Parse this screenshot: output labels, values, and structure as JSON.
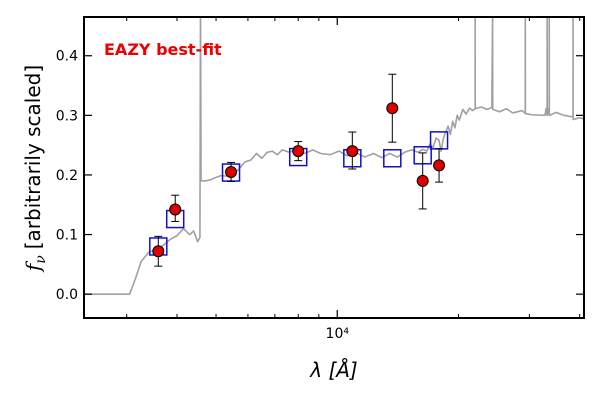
{
  "chart_data": {
    "type": "scatter",
    "annotation": "EAZY best-fit",
    "xlabel": "λ [Å]",
    "ylabel_symbol": "f",
    "ylabel_subscript": "ν",
    "ylabel_text": "[arbitrarily scaled]",
    "x_scale": "log",
    "xlim": [
      2350,
      41000
    ],
    "ylim": [
      -0.04,
      0.465
    ],
    "x_major_ticks": [
      {
        "value": 10000,
        "label": "10⁴"
      }
    ],
    "x_minor_ticks": [
      3000,
      4000,
      5000,
      6000,
      7000,
      8000,
      9000,
      20000,
      30000,
      40000
    ],
    "y_ticks": [
      {
        "value": 0.0,
        "label": "0.0"
      },
      {
        "value": 0.1,
        "label": "0.1"
      },
      {
        "value": 0.2,
        "label": "0.2"
      },
      {
        "value": 0.3,
        "label": "0.3"
      },
      {
        "value": 0.4,
        "label": "0.4"
      }
    ],
    "colors": {
      "model": "#a0a0a0",
      "observed_fill": "#dd0000",
      "synthetic_edge": "#1010cc",
      "annotation": "#ee0000",
      "axes": "#000000"
    },
    "series": [
      {
        "name": "observed photometry",
        "marker": "circle",
        "points": [
          {
            "x": 3594,
            "y": 0.072,
            "err_lo": 0.025,
            "err_hi": 0.025
          },
          {
            "x": 3959,
            "y": 0.142,
            "err_lo": 0.02,
            "err_hi": 0.024
          },
          {
            "x": 5448,
            "y": 0.205,
            "err_lo": 0.016,
            "err_hi": 0.016
          },
          {
            "x": 8000,
            "y": 0.24,
            "err_lo": 0.016,
            "err_hi": 0.016
          },
          {
            "x": 10900,
            "y": 0.24,
            "err_lo": 0.03,
            "err_hi": 0.032
          },
          {
            "x": 13700,
            "y": 0.312,
            "err_lo": 0.057,
            "err_hi": 0.057
          },
          {
            "x": 16300,
            "y": 0.19,
            "err_lo": 0.047,
            "err_hi": 0.047
          },
          {
            "x": 17900,
            "y": 0.216,
            "err_lo": 0.028,
            "err_hi": 0.028
          }
        ]
      },
      {
        "name": "model synthetic photometry",
        "marker": "square",
        "points": [
          {
            "x": 3594,
            "y": 0.08
          },
          {
            "x": 3959,
            "y": 0.126
          },
          {
            "x": 5448,
            "y": 0.204
          },
          {
            "x": 8000,
            "y": 0.23
          },
          {
            "x": 10900,
            "y": 0.228
          },
          {
            "x": 13700,
            "y": 0.228
          },
          {
            "x": 16300,
            "y": 0.233
          },
          {
            "x": 17900,
            "y": 0.258
          }
        ]
      },
      {
        "name": "best-fit template spectrum",
        "marker": "line",
        "points": [
          [
            2350,
            0.0
          ],
          [
            3050,
            0.0
          ],
          [
            3150,
            0.025
          ],
          [
            3260,
            0.055
          ],
          [
            3400,
            0.07
          ],
          [
            3550,
            0.075
          ],
          [
            3700,
            0.082
          ],
          [
            3850,
            0.092
          ],
          [
            4000,
            0.098
          ],
          [
            4150,
            0.11
          ],
          [
            4300,
            0.1
          ],
          [
            4400,
            0.106
          ],
          [
            4500,
            0.088
          ],
          [
            4560,
            0.095
          ],
          [
            4575,
            0.49
          ],
          [
            4590,
            0.19
          ],
          [
            4700,
            0.19
          ],
          [
            4850,
            0.192
          ],
          [
            5000,
            0.196
          ],
          [
            5150,
            0.199
          ],
          [
            5300,
            0.198
          ],
          [
            5500,
            0.2
          ],
          [
            5700,
            0.21
          ],
          [
            5900,
            0.222
          ],
          [
            6100,
            0.225
          ],
          [
            6300,
            0.236
          ],
          [
            6500,
            0.228
          ],
          [
            6700,
            0.238
          ],
          [
            6900,
            0.24
          ],
          [
            7100,
            0.234
          ],
          [
            7300,
            0.242
          ],
          [
            7600,
            0.238
          ],
          [
            7900,
            0.242
          ],
          [
            8300,
            0.236
          ],
          [
            8700,
            0.242
          ],
          [
            9100,
            0.236
          ],
          [
            9600,
            0.234
          ],
          [
            10100,
            0.24
          ],
          [
            10600,
            0.232
          ],
          [
            11100,
            0.238
          ],
          [
            11700,
            0.23
          ],
          [
            12300,
            0.236
          ],
          [
            12900,
            0.229
          ],
          [
            13500,
            0.236
          ],
          [
            14100,
            0.23
          ],
          [
            14700,
            0.238
          ],
          [
            15300,
            0.242
          ],
          [
            15900,
            0.238
          ],
          [
            16300,
            0.243
          ],
          [
            16700,
            0.24
          ],
          [
            17000,
            0.252
          ],
          [
            17300,
            0.246
          ],
          [
            17600,
            0.262
          ],
          [
            17900,
            0.258
          ],
          [
            18100,
            0.24
          ],
          [
            18350,
            0.262
          ],
          [
            18600,
            0.272
          ],
          [
            18850,
            0.282
          ],
          [
            19100,
            0.268
          ],
          [
            19350,
            0.29
          ],
          [
            19600,
            0.279
          ],
          [
            19850,
            0.3
          ],
          [
            20100,
            0.292
          ],
          [
            20500,
            0.31
          ],
          [
            20900,
            0.302
          ],
          [
            21300,
            0.312
          ],
          [
            21700,
            0.308
          ],
          [
            22000,
            0.311
          ],
          [
            22005,
            0.47
          ],
          [
            22015,
            0.311
          ],
          [
            22800,
            0.314
          ],
          [
            23500,
            0.31
          ],
          [
            24200,
            0.313
          ],
          [
            24310,
            0.47
          ],
          [
            24330,
            0.31
          ],
          [
            25300,
            0.306
          ],
          [
            26300,
            0.311
          ],
          [
            27300,
            0.304
          ],
          [
            28800,
            0.308
          ],
          [
            29300,
            0.303
          ],
          [
            29310,
            0.47
          ],
          [
            29330,
            0.303
          ],
          [
            30400,
            0.301
          ],
          [
            32800,
            0.3
          ],
          [
            33000,
            0.311
          ],
          [
            33200,
            0.3
          ],
          [
            33210,
            0.47
          ],
          [
            33230,
            0.3
          ],
          [
            33400,
            0.311
          ],
          [
            33600,
            0.3
          ],
          [
            33610,
            0.47
          ],
          [
            33630,
            0.3
          ],
          [
            35000,
            0.305
          ],
          [
            36500,
            0.3
          ],
          [
            38000,
            0.298
          ],
          [
            38500,
            0.298
          ],
          [
            38510,
            0.47
          ],
          [
            38530,
            0.293
          ],
          [
            40000,
            0.296
          ],
          [
            41000,
            0.294
          ]
        ]
      }
    ]
  }
}
